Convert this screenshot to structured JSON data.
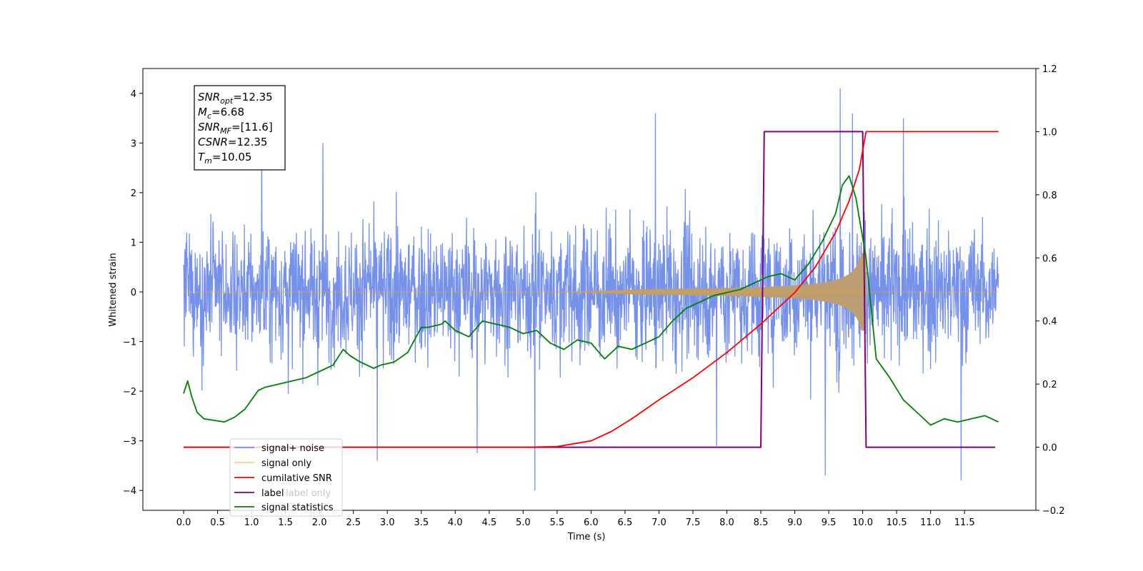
{
  "chart_data": {
    "type": "line",
    "xlabel": "Time (s)",
    "ylabel": "Whitened strain",
    "xlim": [
      -0.6,
      12.55
    ],
    "ylim": [
      -4.4,
      4.5
    ],
    "y2lim": [
      -0.2,
      1.2
    ],
    "x_ticks": [
      0.0,
      0.5,
      1.0,
      1.5,
      2.0,
      2.5,
      3.0,
      3.5,
      4.0,
      4.5,
      5.0,
      5.5,
      6.0,
      6.5,
      7.0,
      7.5,
      8.0,
      8.5,
      9.0,
      9.5,
      10.0,
      10.5,
      11.0,
      11.5
    ],
    "x_tick_labels": [
      "0.0",
      "0.5",
      "1.0",
      "1.5",
      "2.0",
      "2.5",
      "3.0",
      "3.5",
      "4.0",
      "4.5",
      "5.0",
      "5.5",
      "6.0",
      "6.5",
      "7.0",
      "7.5",
      "8.0",
      "8.5",
      "9.0",
      "9.5",
      "10.0",
      "10.5",
      "11.0",
      "11.5"
    ],
    "y_ticks": [
      -4,
      -3,
      -2,
      -1,
      0,
      1,
      2,
      3,
      4
    ],
    "y_tick_labels": [
      "−4",
      "−3",
      "−2",
      "−1",
      "0",
      "1",
      "2",
      "3",
      "4"
    ],
    "y2_ticks": [
      -0.2,
      0.0,
      0.2,
      0.4,
      0.6,
      0.8,
      1.0,
      1.2
    ],
    "y2_tick_labels": [
      "−0.2",
      "0.0",
      "0.2",
      "0.4",
      "0.6",
      "0.8",
      "1.0",
      "1.2"
    ],
    "legend_position": "lower-left",
    "grid": false,
    "series": [
      {
        "name": "signal+ noise",
        "color": "#6f8be8",
        "axis": "left",
        "style": "dense noise spanning approximately ±2.5 with spikes to 4.1 and −4.0",
        "x_range": [
          0.0,
          12.0
        ]
      },
      {
        "name": "signal only",
        "color": "#ffa500",
        "axis": "left",
        "style": "chirp waveform growing from 0 near x=5.5 to amplitude about 0.75 at x=10.05",
        "merger_time": 10.05
      },
      {
        "name": "cumilative SNR",
        "color": "#ff0000",
        "axis": "right",
        "x": [
          0.0,
          5.0,
          5.5,
          6.0,
          6.3,
          6.6,
          7.0,
          7.5,
          8.0,
          8.5,
          9.0,
          9.3,
          9.6,
          9.8,
          9.95,
          10.05,
          12.0
        ],
        "values": [
          0.0,
          0.0,
          0.002,
          0.02,
          0.05,
          0.09,
          0.15,
          0.22,
          0.3,
          0.39,
          0.49,
          0.57,
          0.68,
          0.78,
          0.88,
          1.0,
          1.0
        ]
      },
      {
        "name": "label",
        "color": "#800080",
        "axis": "right",
        "x": [
          0.0,
          8.5,
          8.55,
          10.0,
          10.05,
          11.95
        ],
        "values": [
          0.0,
          0.0,
          1.0,
          1.0,
          0.0,
          0.0
        ]
      },
      {
        "name": "label only",
        "color": "#c8c8c8",
        "axis": "right",
        "hidden_in_plot": true
      },
      {
        "name": "signal statistics",
        "color": "#008000",
        "axis": "right",
        "x": [
          0.0,
          0.06,
          0.12,
          0.2,
          0.3,
          0.45,
          0.6,
          0.75,
          0.9,
          1.0,
          1.1,
          1.2,
          1.4,
          1.6,
          1.8,
          2.0,
          2.2,
          2.35,
          2.45,
          2.6,
          2.8,
          2.9,
          3.1,
          3.3,
          3.5,
          3.6,
          3.8,
          3.85,
          4.0,
          4.2,
          4.4,
          4.6,
          4.8,
          5.0,
          5.2,
          5.4,
          5.6,
          5.8,
          6.0,
          6.2,
          6.4,
          6.6,
          6.8,
          7.0,
          7.2,
          7.4,
          7.6,
          7.8,
          8.0,
          8.2,
          8.4,
          8.6,
          8.8,
          9.0,
          9.2,
          9.4,
          9.6,
          9.7,
          9.8,
          9.9,
          10.05,
          10.2,
          10.4,
          10.6,
          10.8,
          11.0,
          11.2,
          11.4,
          11.6,
          11.8,
          12.0
        ],
        "values": [
          0.17,
          0.21,
          0.16,
          0.11,
          0.09,
          0.085,
          0.08,
          0.095,
          0.12,
          0.15,
          0.18,
          0.19,
          0.2,
          0.21,
          0.22,
          0.24,
          0.26,
          0.31,
          0.29,
          0.27,
          0.25,
          0.26,
          0.27,
          0.3,
          0.38,
          0.38,
          0.39,
          0.4,
          0.37,
          0.35,
          0.4,
          0.39,
          0.38,
          0.36,
          0.37,
          0.33,
          0.31,
          0.34,
          0.33,
          0.28,
          0.32,
          0.31,
          0.33,
          0.35,
          0.4,
          0.44,
          0.46,
          0.48,
          0.49,
          0.5,
          0.52,
          0.54,
          0.55,
          0.53,
          0.58,
          0.65,
          0.74,
          0.83,
          0.86,
          0.79,
          0.6,
          0.28,
          0.22,
          0.15,
          0.11,
          0.07,
          0.09,
          0.08,
          0.09,
          0.1,
          0.08
        ]
      }
    ],
    "annotation": {
      "position": "top-left",
      "lines": [
        {
          "base": "SNR",
          "sub": "opt",
          "value": "=12.35"
        },
        {
          "base": "M",
          "sub": "c",
          "value": "=6.68"
        },
        {
          "base": "SNR",
          "sub": "MF",
          "value": "=[11.6]"
        },
        {
          "base": "CSNR",
          "sub": "",
          "value": "=12.35"
        },
        {
          "base": "T",
          "sub": "m",
          "value": "=10.05"
        }
      ]
    }
  }
}
